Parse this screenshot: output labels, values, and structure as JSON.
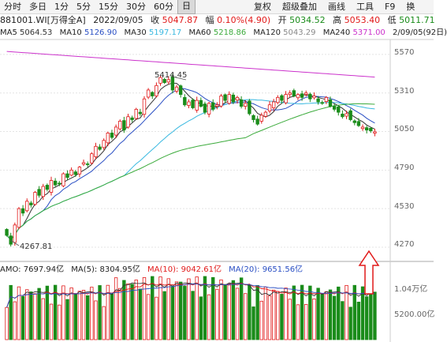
{
  "toolbar": {
    "tabs": [
      "分时",
      "多日",
      "1分",
      "5分",
      "15分",
      "30分",
      "60分",
      "日"
    ],
    "active_index": 7,
    "tools": [
      "复权",
      "超级叠加",
      "画线",
      "工具",
      "F9",
      "换"
    ]
  },
  "info": {
    "code": "881001.WI[万得全A]",
    "date": "2022/09/05",
    "close_label": "收",
    "close": "5047.87",
    "change_label": "幅",
    "change": "0.10%(4.90)",
    "open_label": "开",
    "open": "5034.52",
    "high_label": "高",
    "high": "5053.40",
    "low_label": "低",
    "low": "5011.71"
  },
  "ma_bar": {
    "ma5": {
      "label": "MA5",
      "value": "5064.53"
    },
    "ma10": {
      "label": "MA10",
      "value": "5126.90"
    },
    "ma30": {
      "label": "MA30",
      "value": "5197.17"
    },
    "ma60": {
      "label": "MA60",
      "value": "5218.86"
    },
    "ma120": {
      "label": "MA120",
      "value": "5043.29"
    },
    "ma240": {
      "label": "MA240",
      "value": "5371.00"
    },
    "range": "2/09/05(92日)"
  },
  "vol_bar": {
    "amo": {
      "label": "AMO",
      "value": "7697.94亿"
    },
    "ma5": {
      "label": "MA(5)",
      "value": "8304.95亿"
    },
    "ma10": {
      "label": "MA(10)",
      "value": "9042.61亿"
    },
    "ma20": {
      "label": "MA(20)",
      "value": "9651.56亿"
    }
  },
  "price_axis": [
    "5570",
    "5310",
    "5050",
    "4790",
    "4530",
    "4270"
  ],
  "vol_axis": [
    "1.04万亿",
    "5200.00亿"
  ],
  "annotations": {
    "high": "5414.45",
    "low": "4267.81"
  },
  "colors": {
    "up": "#e11919",
    "down": "#1a8c1a",
    "ma5": "#333333",
    "ma10": "#2a4fc4",
    "ma30": "#38b8e0",
    "ma60": "#3cab3c",
    "ma240": "#cc33cc",
    "arrow": "#e11919"
  },
  "chart_data": {
    "type": "candlestick",
    "days": 92,
    "yrange": [
      4190,
      5660
    ],
    "closes": [
      4350,
      4290,
      4420,
      4530,
      4500,
      4580,
      4555,
      4640,
      4620,
      4680,
      4660,
      4720,
      4690,
      4700,
      4765,
      4740,
      4790,
      4760,
      4810,
      4840,
      4830,
      4900,
      4950,
      4930,
      4990,
      5040,
      5010,
      5080,
      5120,
      5060,
      5150,
      5130,
      5200,
      5170,
      5270,
      5330,
      5290,
      5360,
      5414,
      5380,
      5400,
      5330,
      5350,
      5300,
      5230,
      5250,
      5210,
      5260,
      5220,
      5180,
      5240,
      5200,
      5230,
      5290,
      5260,
      5300,
      5250,
      5280,
      5220,
      5240,
      5170,
      5130,
      5100,
      5160,
      5180,
      5230,
      5250,
      5280,
      5260,
      5300,
      5310,
      5290,
      5300,
      5280,
      5310,
      5270,
      5290,
      5250,
      5240,
      5280,
      5220,
      5200,
      5180,
      5150,
      5170,
      5130,
      5110,
      5090,
      5080,
      5060,
      5055,
      5048
    ]
  }
}
